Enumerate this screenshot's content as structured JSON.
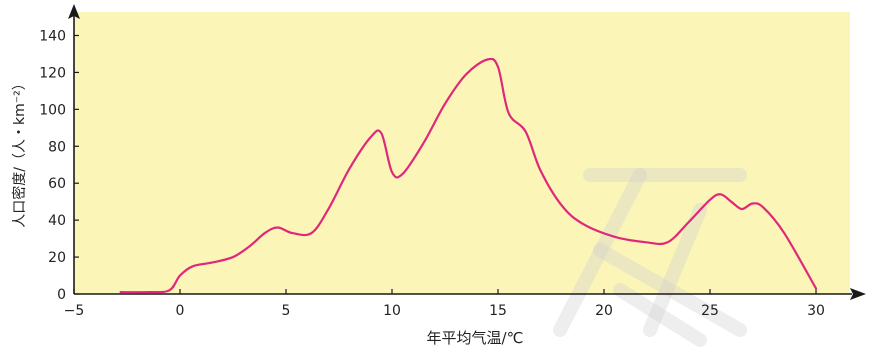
{
  "colors": {
    "plot_background": "#fbf5b8",
    "line": "#e0287a",
    "axis": "#1a1a1a",
    "watermark": "#d0d0d0"
  },
  "chart_data": {
    "type": "line",
    "xlabel": "年平均气温/℃",
    "ylabel": "人口密度/（人・km⁻²）",
    "xlim": [
      -5,
      30
    ],
    "ylim": [
      0,
      145
    ],
    "x_ticks": [
      -5,
      0,
      5,
      10,
      15,
      20,
      25,
      30
    ],
    "x_tick_labels": [
      "−5",
      "0",
      "5",
      "10",
      "15",
      "20",
      "25",
      "30"
    ],
    "y_ticks": [
      0,
      20,
      40,
      60,
      80,
      100,
      120,
      140
    ],
    "y_tick_labels": [
      "0",
      "20",
      "40",
      "60",
      "80",
      "100",
      "120",
      "140"
    ],
    "grid": false,
    "legend": "none",
    "series": [
      {
        "x": [
          -2.8,
          -1.5,
          -0.5,
          0,
          0.6,
          1.5,
          2.5,
          3.3,
          4.0,
          4.6,
          5.3,
          6.2,
          7.0,
          8.0,
          9.0,
          9.5,
          10.0,
          10.5,
          11.5,
          12.5,
          13.5,
          14.5,
          15.0,
          15.5,
          16.3,
          17.0,
          18.0,
          19.0,
          20.5,
          22.0,
          23.0,
          24.0,
          25.0,
          25.5,
          26.0,
          26.5,
          27.0,
          27.5,
          28.5,
          30.0
        ],
        "y": [
          1,
          1,
          2,
          10,
          15,
          17,
          20,
          26,
          33,
          36,
          33,
          33,
          46,
          68,
          85,
          87,
          66,
          65,
          82,
          103,
          119,
          127,
          123,
          98,
          88,
          67,
          48,
          38,
          31,
          28,
          28,
          39,
          51,
          54,
          50,
          46,
          49,
          47,
          33,
          3
        ]
      }
    ]
  }
}
